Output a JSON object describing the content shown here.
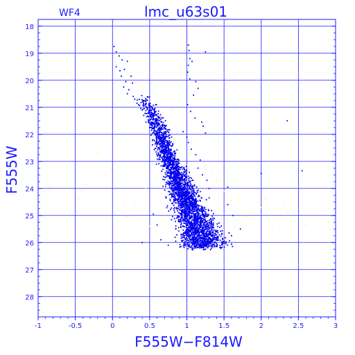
{
  "chart_data": {
    "type": "scatter",
    "title": "lmc_u63s01",
    "subtitle": "WF4",
    "xlabel": "F555W−F814W",
    "ylabel": "F555W",
    "xlim": [
      -1,
      3
    ],
    "ylim": [
      28.75,
      17.75
    ],
    "y_inverted": true,
    "grid": true,
    "xticks": [
      -1,
      -0.5,
      0,
      0.5,
      1,
      1.5,
      2,
      2.5,
      3
    ],
    "xtick_labels": [
      "-1",
      "-0.5",
      "0",
      "0.5",
      "1",
      "1.5",
      "2",
      "2.5",
      "3"
    ],
    "yticks": [
      18,
      19,
      20,
      21,
      22,
      23,
      24,
      25,
      26,
      27,
      28
    ],
    "ytick_labels": [
      "18",
      "19",
      "20",
      "21",
      "22",
      "23",
      "24",
      "25",
      "26",
      "27",
      "28"
    ],
    "colors": {
      "axes": "#1a1aff",
      "main_series": "#0000ee",
      "secondary_series": "#ffff55"
    },
    "series": [
      {
        "color": "#0000ee",
        "x": [
          0.02,
          0.05,
          0.09,
          0.13,
          0.2,
          0.16,
          0.25,
          0.27,
          1.02,
          1.03,
          1.25,
          1.04,
          1.07,
          1.02,
          1.01,
          1.04,
          1.12,
          1.15,
          1.09,
          1.01,
          1.05,
          1.11,
          1.2,
          1.22,
          1.25,
          0.05,
          0.1,
          0.12,
          0.18,
          0.22,
          0.28,
          0.33,
          0.38,
          0.42,
          0.45,
          0.5,
          0.15,
          0.2,
          0.3,
          0.35,
          0.4,
          0.46,
          0.52,
          0.56,
          0.6,
          0.95,
          1.0,
          1.02,
          1.06,
          1.12,
          1.18,
          1.15,
          1.21,
          1.27,
          1.55,
          2.35,
          2.55,
          2.0,
          1.02,
          1.3,
          1.55,
          1.62,
          1.72,
          1.3,
          0.4,
          0.65,
          0.75,
          0.85,
          0.92,
          1.1,
          0.55,
          0.6,
          1.35,
          1.6
        ],
        "y": [
          18.75,
          18.95,
          19.1,
          19.25,
          19.3,
          19.6,
          19.85,
          20.1,
          18.7,
          18.9,
          18.95,
          19.2,
          19.3,
          19.45,
          19.7,
          19.95,
          20.05,
          20.3,
          20.55,
          20.9,
          21.15,
          21.4,
          21.55,
          21.7,
          21.95,
          19.5,
          19.65,
          19.85,
          20.05,
          20.35,
          20.6,
          20.85,
          21.05,
          21.3,
          21.55,
          21.75,
          20.25,
          20.5,
          20.7,
          20.9,
          21.1,
          21.35,
          21.55,
          21.8,
          22.0,
          21.9,
          22.1,
          22.3,
          22.55,
          22.75,
          22.95,
          23.25,
          23.5,
          23.7,
          23.95,
          21.5,
          23.35,
          23.45,
          23.55,
          24.0,
          24.6,
          25.0,
          25.5,
          24.35,
          26.0,
          25.9,
          26.1,
          25.95,
          26.15,
          26.05,
          24.95,
          25.35,
          25.1,
          25.75
        ],
        "cloud": {
          "color": "#0000ee",
          "n_points": 3000,
          "ridge_y": [
            20.5,
            21,
            21.5,
            22,
            22.5,
            23,
            23.5,
            24,
            24.5,
            25,
            25.5,
            26
          ],
          "ridge_x": [
            0.4,
            0.5,
            0.59,
            0.65,
            0.7,
            0.77,
            0.86,
            0.93,
            1.0,
            1.08,
            1.16,
            1.22
          ],
          "spread_x": [
            0.08,
            0.08,
            0.09,
            0.1,
            0.11,
            0.12,
            0.13,
            0.15,
            0.17,
            0.2,
            0.22,
            0.24
          ]
        }
      },
      {
        "color": "#ffff55",
        "x": [
          -0.85,
          -0.45,
          -0.35,
          -0.3,
          -0.2,
          -0.1,
          0.15,
          0.2,
          0.3,
          0.6,
          0.55,
          0.75,
          0.9,
          0.8,
          1.05,
          1.15,
          1.25,
          1.35,
          1.4,
          1.45,
          1.5,
          1.6,
          1.65,
          1.7,
          1.75,
          1.8,
          1.85,
          1.9,
          2.0,
          2.1,
          2.2,
          2.25,
          2.3,
          2.35,
          2.4,
          2.45,
          2.6,
          2.9,
          1.55,
          1.65,
          0.45,
          0.5,
          2.05,
          2.15,
          0.68
        ],
        "y": [
          23.95,
          24.4,
          23.85,
          24.6,
          22.7,
          23.5,
          24.6,
          25.05,
          24.55,
          19.1,
          20.5,
          20.1,
          19.5,
          21.1,
          22.7,
          22.2,
          23.2,
          23.4,
          23.75,
          23.7,
          24.1,
          24.45,
          24.35,
          24.25,
          24.55,
          25.05,
          24.85,
          24.9,
          24.7,
          25.1,
          24.8,
          24.75,
          24.65,
          24.9,
          24.55,
          25.2,
          25.35,
          25.25,
          23.75,
          23.55,
          24.0,
          25.4,
          24.4,
          25.5,
          25.25
        ]
      }
    ]
  }
}
